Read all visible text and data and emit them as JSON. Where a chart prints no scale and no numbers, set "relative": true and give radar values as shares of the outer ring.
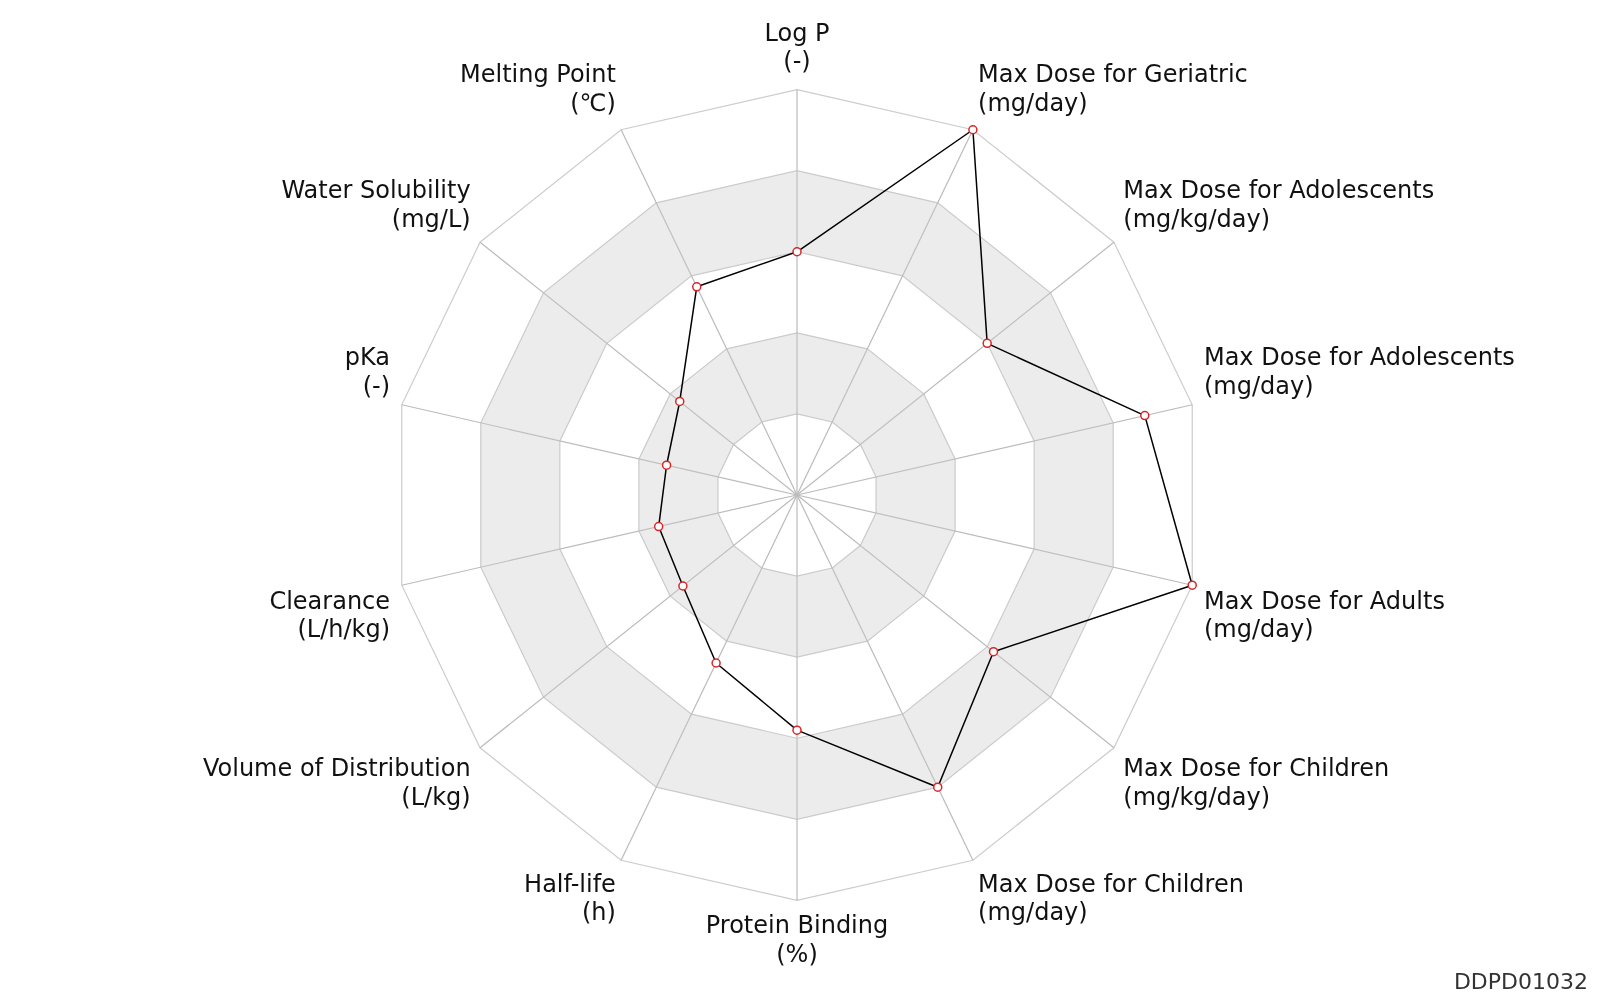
{
  "chart_data": {
    "type": "radar",
    "relative": true,
    "grid": true,
    "legend": false,
    "marker": "circle",
    "line_style": "solid",
    "categories": [
      "Log P\n(-)",
      "Max Dose for Geriatric\n(mg/day)",
      "Max Dose for Adolescents\n(mg/kg/day)",
      "Max Dose for Adolescents\n(mg/day)",
      "Max Dose for Adults\n(mg/day)",
      "Max Dose for Children\n(mg/kg/day)",
      "Max Dose for Children\n(mg/day)",
      "Protein Binding\n(%)",
      "Half-life\n(h)",
      "Volume of Distribution\n(L/kg)",
      "Clearance\n(L/h/kg)",
      "pKa\n(-)",
      "Water Solubility\n(mg/L)",
      "Melting Point\n(℃)"
    ],
    "series": [
      {
        "color": "#000000",
        "values": [
          0.6,
          1.0,
          0.6,
          0.88,
          1.0,
          0.62,
          0.8,
          0.58,
          0.46,
          0.36,
          0.35,
          0.33,
          0.37,
          0.57
        ]
      }
    ],
    "annotations": [
      "DDPD01032"
    ]
  }
}
